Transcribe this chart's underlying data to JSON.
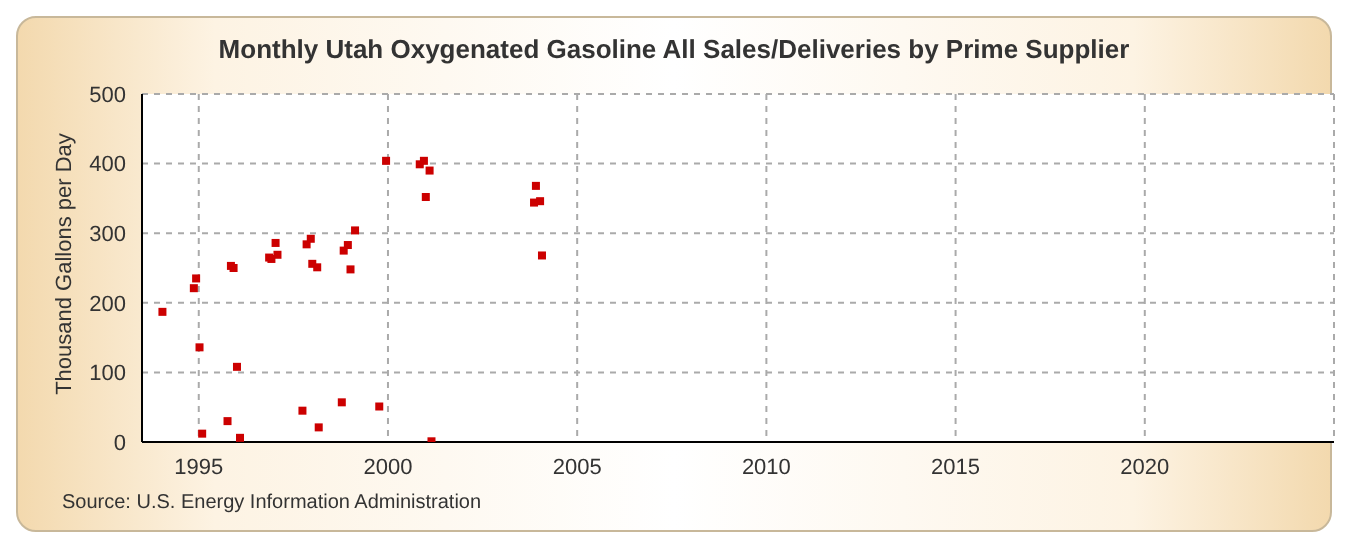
{
  "chart_data": {
    "type": "scatter",
    "title": "Monthly Utah Oxygenated Gasoline All Sales/Deliveries by Prime Supplier",
    "ylabel": "Thousand Gallons per Day",
    "annotations": [
      "Source: U.S. Energy Information Administration"
    ],
    "x": [
      1994.04,
      1994.87,
      1994.93,
      1995.02,
      1995.09,
      1995.76,
      1995.85,
      1995.92,
      1996.01,
      1996.09,
      1996.86,
      1996.92,
      1997.03,
      1997.08,
      1997.74,
      1997.85,
      1997.96,
      1998.0,
      1998.13,
      1998.17,
      1998.78,
      1998.83,
      1998.94,
      1999.01,
      1999.13,
      1999.77,
      1999.95,
      2000.84,
      2000.95,
      2001.0,
      2001.1,
      2001.15,
      2003.86,
      2003.91,
      2004.02,
      2004.07
    ],
    "series": [
      {
        "color": "#cc0000",
        "values": [
          187,
          221,
          235,
          136,
          12,
          30,
          253,
          250,
          108,
          6,
          265,
          263,
          286,
          269,
          45,
          284,
          292,
          256,
          251,
          21,
          57,
          275,
          283,
          248,
          304,
          51,
          404,
          399,
          404,
          352,
          390,
          1,
          344,
          368,
          346,
          268
        ]
      }
    ],
    "xlim": [
      1993.5,
      2025
    ],
    "xticks": [
      1995,
      2000,
      2005,
      2010,
      2015,
      2020
    ],
    "ylim": [
      0,
      500
    ],
    "yticks": [
      0,
      100,
      200,
      300,
      400,
      500
    ],
    "grid": true,
    "marker": "square"
  }
}
